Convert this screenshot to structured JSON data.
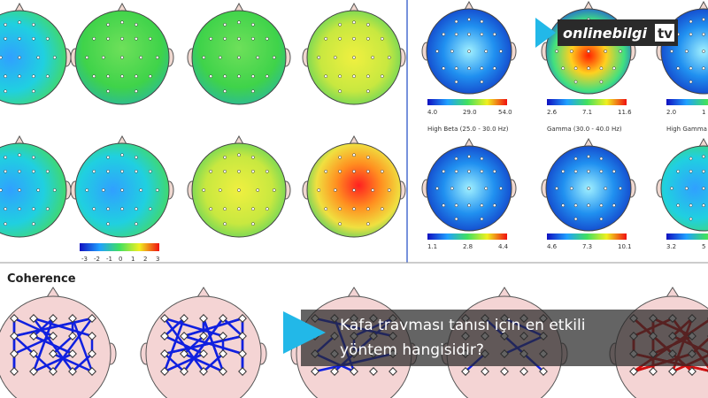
{
  "logo": {
    "name": "onlinebilgi",
    "suffix": "tv"
  },
  "topomaps": {
    "left_scale": [
      "-3",
      "-2",
      "-1",
      "0",
      "1",
      "2",
      "3"
    ],
    "right_top_scales": [
      [
        "4.0",
        "29.0",
        "54.0"
      ],
      [
        "2.6",
        "7.1",
        "11.6"
      ],
      [
        "2.0",
        "1"
      ]
    ],
    "right_titles": [
      "High Beta (25.0 - 30.0 Hz)",
      "Gamma (30.0 - 40.0 Hz)",
      "High Gamma ("
    ],
    "right_bottom_scales": [
      [
        "1.1",
        "2.8",
        "4.4"
      ],
      [
        "4.6",
        "7.3",
        "10.1"
      ],
      [
        "3.2",
        "5"
      ]
    ]
  },
  "section": "Coherence",
  "caption": {
    "lines": [
      "Kafa travması tanısı için en etkili",
      "yöntem hangisidir?"
    ]
  }
}
